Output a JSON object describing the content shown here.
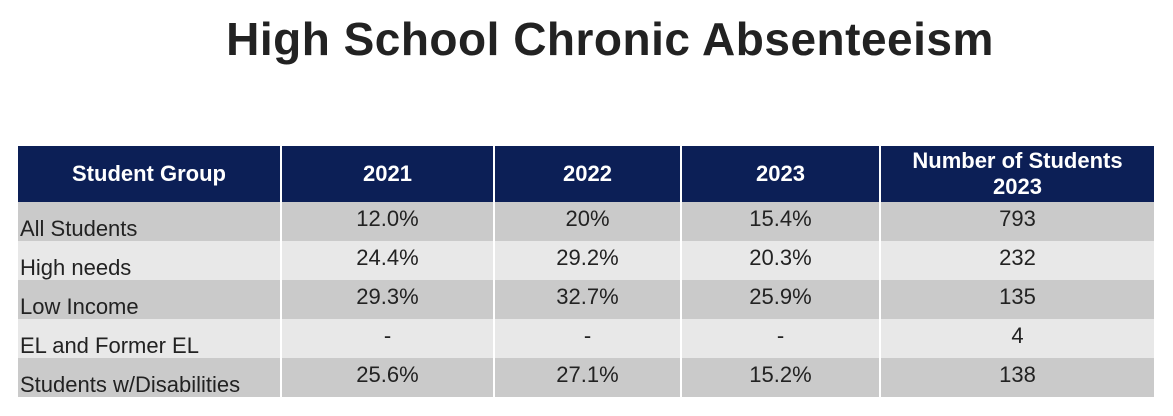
{
  "title": "High School Chronic Absenteeism",
  "table": {
    "headers": [
      "Student Group",
      "2021",
      "2022",
      "2023",
      "Number of Students 2023"
    ],
    "header_number_line1": "Number of Students",
    "header_number_line2": "2023",
    "rows": [
      [
        "All Students",
        "12.0%",
        "20%",
        "15.4%",
        "793"
      ],
      [
        "High needs",
        "24.4%",
        "29.2%",
        "20.3%",
        "232"
      ],
      [
        "Low Income",
        "29.3%",
        "32.7%",
        "25.9%",
        "135"
      ],
      [
        "EL and Former EL",
        "-",
        "-",
        "-",
        "4"
      ],
      [
        "Students w/Disabilities",
        "25.6%",
        "27.1%",
        "15.2%",
        "138"
      ]
    ]
  },
  "colors": {
    "header_bg": "#0c1f56",
    "header_text": "#ffffff",
    "row_dark": "#cacaca",
    "row_light": "#e8e8e8",
    "text": "#222222"
  }
}
